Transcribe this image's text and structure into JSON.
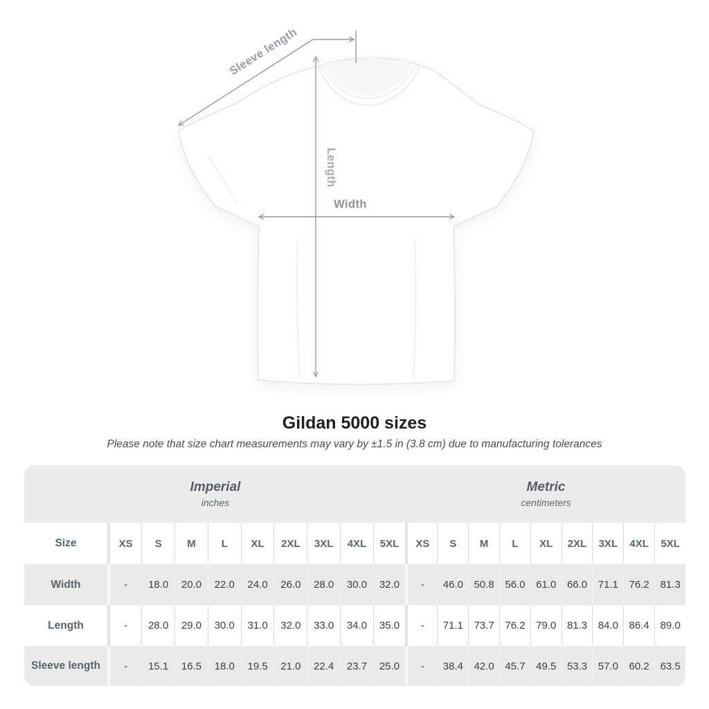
{
  "title": "Gildan 5000 sizes",
  "subtitle": "Please note that size chart measurements may vary by ±1.5 in (3.8 cm) due to manufacturing tolerances",
  "diagram": {
    "labels": {
      "sleeve_length": "Sleeve length",
      "length": "Length",
      "width": "Width"
    }
  },
  "table": {
    "size_header": "Size",
    "groups": [
      {
        "label": "Imperial",
        "sublabel": "inches"
      },
      {
        "label": "Metric",
        "sublabel": "centimeters"
      }
    ],
    "sizes": [
      "XS",
      "S",
      "M",
      "L",
      "XL",
      "2XL",
      "3XL",
      "4XL",
      "5XL"
    ],
    "rows": [
      {
        "label": "Width",
        "imperial": [
          "-",
          "18.0",
          "20.0",
          "22.0",
          "24.0",
          "26.0",
          "28.0",
          "30.0",
          "32.0"
        ],
        "metric": [
          "-",
          "46.0",
          "50.8",
          "56.0",
          "61.0",
          "66.0",
          "71.1",
          "76.2",
          "81.3"
        ]
      },
      {
        "label": "Length",
        "imperial": [
          "-",
          "28.0",
          "29.0",
          "30.0",
          "31.0",
          "32.0",
          "33.0",
          "34.0",
          "35.0"
        ],
        "metric": [
          "-",
          "71.1",
          "73.7",
          "76.2",
          "79.0",
          "81.3",
          "84.0",
          "86.4",
          "89.0"
        ]
      },
      {
        "label": "Sleeve length",
        "imperial": [
          "-",
          "15.1",
          "16.5",
          "18.0",
          "19.5",
          "21.0",
          "22.4",
          "23.7",
          "25.0"
        ],
        "metric": [
          "-",
          "38.4",
          "42.0",
          "45.7",
          "49.5",
          "53.3",
          "57.0",
          "60.2",
          "63.5"
        ]
      }
    ]
  },
  "colors": {
    "measure_line": "#9b9b9b",
    "measure_label": "#979ca0",
    "table_bg": "#ececec",
    "row_gray": "#eaeaea",
    "row_white": "#ffffff",
    "separator_on_white": "#dadada",
    "separator_on_gray": "#f4f4f4",
    "header_text": "#5d646a",
    "value_text": "#3b3e41",
    "title_text": "#1f1f1f",
    "subtitle_text": "#4b4b4b"
  }
}
